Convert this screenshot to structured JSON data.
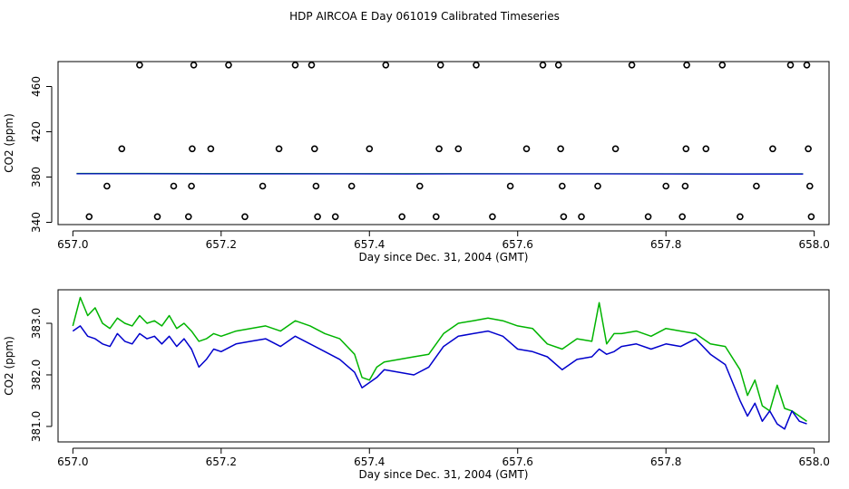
{
  "title": "HDP AIRCOA E  Day 061019  Calibrated Timeseries",
  "colors": {
    "background": "#ffffff",
    "axes": "#000000",
    "series_blue": "#0000cc",
    "series_green": "#00b400",
    "points": "#000000"
  },
  "chart_data": [
    {
      "type": "scatter",
      "xlabel": "Day since Dec. 31, 2004 (GMT)",
      "ylabel": "CO2 (ppm)",
      "xlim": [
        656.98,
        658.02
      ],
      "ylim": [
        338,
        482
      ],
      "xticks": [
        657.0,
        657.2,
        657.4,
        657.6,
        657.8,
        658.0
      ],
      "xtick_labels": [
        "657.0",
        "657.2",
        "657.4",
        "657.6",
        "657.8",
        "658.0"
      ],
      "yticks": [
        340,
        380,
        420,
        460
      ],
      "ytick_labels": [
        "340",
        "380",
        "420",
        "460"
      ],
      "grid": false,
      "legend": "none",
      "point_series": {
        "name": "",
        "marker": "open-circle",
        "points": [
          [
            657.022,
            345
          ],
          [
            657.046,
            372
          ],
          [
            657.066,
            405
          ],
          [
            657.09,
            479
          ],
          [
            657.114,
            345
          ],
          [
            657.136,
            372
          ],
          [
            657.156,
            345
          ],
          [
            657.16,
            372
          ],
          [
            657.161,
            405
          ],
          [
            657.163,
            479
          ],
          [
            657.186,
            405
          ],
          [
            657.21,
            479
          ],
          [
            657.232,
            345
          ],
          [
            657.256,
            372
          ],
          [
            657.278,
            405
          ],
          [
            657.3,
            479
          ],
          [
            657.322,
            479
          ],
          [
            657.326,
            405
          ],
          [
            657.328,
            372
          ],
          [
            657.33,
            345
          ],
          [
            657.354,
            345
          ],
          [
            657.376,
            372
          ],
          [
            657.4,
            405
          ],
          [
            657.422,
            479
          ],
          [
            657.444,
            345
          ],
          [
            657.468,
            372
          ],
          [
            657.49,
            345
          ],
          [
            657.494,
            405
          ],
          [
            657.496,
            479
          ],
          [
            657.52,
            405
          ],
          [
            657.544,
            479
          ],
          [
            657.566,
            345
          ],
          [
            657.59,
            372
          ],
          [
            657.612,
            405
          ],
          [
            657.634,
            479
          ],
          [
            657.655,
            479
          ],
          [
            657.658,
            405
          ],
          [
            657.66,
            372
          ],
          [
            657.662,
            345
          ],
          [
            657.686,
            345
          ],
          [
            657.708,
            372
          ],
          [
            657.732,
            405
          ],
          [
            657.754,
            479
          ],
          [
            657.776,
            345
          ],
          [
            657.8,
            372
          ],
          [
            657.822,
            345
          ],
          [
            657.826,
            372
          ],
          [
            657.827,
            405
          ],
          [
            657.828,
            479
          ],
          [
            657.854,
            405
          ],
          [
            657.876,
            479
          ],
          [
            657.9,
            345
          ],
          [
            657.922,
            372
          ],
          [
            657.944,
            405
          ],
          [
            657.968,
            479
          ],
          [
            657.99,
            479
          ],
          [
            657.992,
            405
          ],
          [
            657.994,
            372
          ],
          [
            657.996,
            345
          ]
        ]
      },
      "line_series": [
        {
          "name": "",
          "color": "#00b400",
          "x_start": 657.005,
          "x_end": 657.985,
          "values": [
            383.2,
            383.2,
            383.1,
            383.1,
            383.0,
            383.0,
            383.0,
            382.9,
            382.9,
            382.9,
            382.8,
            382.9
          ]
        },
        {
          "name": "",
          "color": "#0000cc",
          "x_start": 657.005,
          "x_end": 657.985,
          "values": [
            382.9,
            382.9,
            382.8,
            382.8,
            382.8,
            382.7,
            382.8,
            382.8,
            382.8,
            382.7,
            382.6,
            382.6
          ]
        }
      ]
    },
    {
      "type": "line",
      "xlabel": "Day since Dec. 31, 2004 (GMT)",
      "ylabel": "CO2 (ppm)",
      "xlim": [
        656.98,
        658.02
      ],
      "ylim": [
        380.7,
        383.65
      ],
      "xticks": [
        657.0,
        657.2,
        657.4,
        657.6,
        657.8,
        658.0
      ],
      "xtick_labels": [
        "657.0",
        "657.2",
        "657.4",
        "657.6",
        "657.8",
        "658.0"
      ],
      "yticks": [
        381.0,
        382.0,
        383.0
      ],
      "ytick_labels": [
        "381.0",
        "382.0",
        "383.0"
      ],
      "grid": false,
      "legend": "none",
      "series": [
        {
          "name": "",
          "color": "#00b400",
          "x": [
            657.0,
            657.01,
            657.02,
            657.03,
            657.04,
            657.05,
            657.06,
            657.07,
            657.08,
            657.09,
            657.1,
            657.11,
            657.12,
            657.13,
            657.14,
            657.15,
            657.16,
            657.17,
            657.18,
            657.19,
            657.2,
            657.22,
            657.24,
            657.26,
            657.28,
            657.3,
            657.32,
            657.34,
            657.36,
            657.38,
            657.39,
            657.4,
            657.41,
            657.42,
            657.44,
            657.46,
            657.48,
            657.5,
            657.52,
            657.54,
            657.56,
            657.58,
            657.6,
            657.62,
            657.64,
            657.66,
            657.68,
            657.7,
            657.71,
            657.72,
            657.73,
            657.74,
            657.76,
            657.78,
            657.8,
            657.82,
            657.84,
            657.86,
            657.88,
            657.9,
            657.91,
            657.92,
            657.93,
            657.94,
            657.95,
            657.96,
            657.97,
            657.98,
            657.99
          ],
          "y": [
            382.95,
            383.5,
            383.15,
            383.3,
            383.0,
            382.9,
            383.1,
            383.0,
            382.95,
            383.15,
            383.0,
            383.05,
            382.95,
            383.15,
            382.9,
            383.0,
            382.85,
            382.65,
            382.7,
            382.8,
            382.75,
            382.85,
            382.9,
            382.95,
            382.85,
            383.05,
            382.95,
            382.8,
            382.7,
            382.4,
            381.95,
            381.9,
            382.15,
            382.25,
            382.3,
            382.35,
            382.4,
            382.8,
            383.0,
            383.05,
            383.1,
            383.05,
            382.95,
            382.9,
            382.6,
            382.5,
            382.7,
            382.65,
            383.4,
            382.6,
            382.8,
            382.8,
            382.85,
            382.75,
            382.9,
            382.85,
            382.8,
            382.6,
            382.55,
            382.1,
            381.6,
            381.9,
            381.4,
            381.3,
            381.8,
            381.35,
            381.3,
            381.2,
            381.1
          ]
        },
        {
          "name": "",
          "color": "#0000cc",
          "x": [
            657.0,
            657.01,
            657.02,
            657.03,
            657.04,
            657.05,
            657.06,
            657.07,
            657.08,
            657.09,
            657.1,
            657.11,
            657.12,
            657.13,
            657.14,
            657.15,
            657.16,
            657.17,
            657.18,
            657.19,
            657.2,
            657.22,
            657.24,
            657.26,
            657.28,
            657.3,
            657.32,
            657.34,
            657.36,
            657.38,
            657.39,
            657.4,
            657.41,
            657.42,
            657.44,
            657.46,
            657.48,
            657.5,
            657.52,
            657.54,
            657.56,
            657.58,
            657.6,
            657.62,
            657.64,
            657.66,
            657.68,
            657.7,
            657.71,
            657.72,
            657.73,
            657.74,
            657.76,
            657.78,
            657.8,
            657.82,
            657.84,
            657.86,
            657.88,
            657.9,
            657.91,
            657.92,
            657.93,
            657.94,
            657.95,
            657.96,
            657.97,
            657.98,
            657.99
          ],
          "y": [
            382.85,
            382.95,
            382.75,
            382.7,
            382.6,
            382.55,
            382.8,
            382.65,
            382.6,
            382.8,
            382.7,
            382.75,
            382.6,
            382.75,
            382.55,
            382.7,
            382.5,
            382.15,
            382.3,
            382.5,
            382.45,
            382.6,
            382.65,
            382.7,
            382.55,
            382.75,
            382.6,
            382.45,
            382.3,
            382.05,
            381.75,
            381.85,
            381.95,
            382.1,
            382.05,
            382.0,
            382.15,
            382.55,
            382.75,
            382.8,
            382.85,
            382.75,
            382.5,
            382.45,
            382.35,
            382.1,
            382.3,
            382.35,
            382.5,
            382.4,
            382.45,
            382.55,
            382.6,
            382.5,
            382.6,
            382.55,
            382.7,
            382.4,
            382.2,
            381.5,
            381.2,
            381.45,
            381.1,
            381.3,
            381.05,
            380.95,
            381.3,
            381.1,
            381.05
          ]
        }
      ]
    }
  ]
}
